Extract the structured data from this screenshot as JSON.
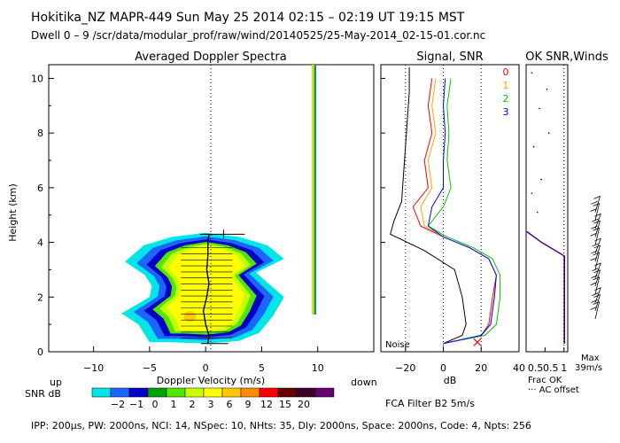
{
  "header": {
    "line1": "Hokitika_NZ  MAPR-449  Sun May 25 2014 02:15 – 02:19 UT 19:15 MST",
    "line2": "Dwell  0 –  9   /scr/data/modular_prof/raw/wind/20140525/25-May-2014_02-15-01.cor.nc"
  },
  "footer": {
    "params": "IPP: 200µs,  PW: 2000ns,  NCI: 14,  NSpec: 10, NHts: 35,  Dly: 2000ns,  Space: 2000ns,  Code: 4,  Npts: 256",
    "fca_filter": "FCA Filter B2   5m/s"
  },
  "colorbar": {
    "label": "SNR dB",
    "ticks": [
      "−2",
      "−1",
      "0",
      "1",
      "2",
      "3",
      "6",
      "9",
      "12",
      "15",
      "20"
    ],
    "colors": [
      "#00e5e5",
      "#1e64ff",
      "#0000c8",
      "#00a000",
      "#50e600",
      "#c8ff00",
      "#ffff00",
      "#ffc800",
      "#ff8c00",
      "#ff0000",
      "#640000",
      "#3c0028",
      "#64006e"
    ]
  },
  "chart_data": [
    {
      "type": "heatmap",
      "title": "Averaged Doppler Spectra",
      "xlabel": "Doppler Velocity (m/s)",
      "ylabel": "Height (km)",
      "xlabel_left": "up",
      "xlabel_right": "down",
      "xlim": [
        -14,
        15
      ],
      "ylim": [
        0,
        10.5
      ],
      "xticks": [
        -10,
        -5,
        0,
        5,
        10
      ],
      "yticks": [
        0,
        2,
        4,
        6,
        8,
        10
      ],
      "spectra_top_km": 4.3,
      "mean_velocity_profile": {
        "height_km": [
          0.3,
          0.6,
          1.0,
          1.5,
          2.0,
          2.5,
          3.0,
          3.5,
          4.0,
          4.3
        ],
        "velocity_ms": [
          0.2,
          0.3,
          0.0,
          -0.2,
          0.1,
          0.3,
          0.1,
          0.2,
          0.2,
          0.3
        ]
      }
    },
    {
      "type": "line",
      "title": "Signal, SNR",
      "xlabel": "dB",
      "xlim": [
        -33,
        40
      ],
      "ylim": [
        0,
        10.5
      ],
      "xticks": [
        -20,
        0,
        20,
        40
      ],
      "noise_label": "Noise",
      "legend": [
        "0",
        "1",
        "2",
        "3"
      ],
      "legend_colors": [
        "#ff0000",
        "#ffa500",
        "#00c800",
        "#0000ff"
      ],
      "series": [
        {
          "name": "Signal",
          "color": "#000000",
          "height_km": [
            0.3,
            0.6,
            1.0,
            2.0,
            3.0,
            3.7,
            4.3,
            4.8,
            5.5,
            6.5,
            7.5,
            8.5,
            9.5,
            10.4
          ],
          "x_db": [
            0,
            10,
            12,
            10,
            6,
            -10,
            -28,
            -26,
            -22,
            -21,
            -20,
            -19,
            -18,
            -18
          ]
        },
        {
          "name": "0",
          "color": "#ff0000",
          "height_km": [
            0.3,
            0.6,
            1.0,
            2.0,
            2.8,
            3.4,
            3.8,
            4.2,
            4.6,
            5.3,
            6.0,
            7.0,
            8.0,
            9.0,
            10.0
          ],
          "x_db": [
            0,
            20,
            24,
            26,
            28,
            24,
            14,
            0,
            -12,
            -16,
            -8,
            -10,
            -6,
            -8,
            -6
          ]
        },
        {
          "name": "1",
          "color": "#ffa500",
          "height_km": [
            0.3,
            0.6,
            1.0,
            2.0,
            2.8,
            3.4,
            3.8,
            4.2,
            4.6,
            5.3,
            6.0,
            7.0,
            8.0,
            9.0,
            10.0
          ],
          "x_db": [
            0,
            20,
            25,
            27,
            28,
            24,
            14,
            0,
            -10,
            -12,
            -6,
            -8,
            -4,
            -6,
            -4
          ]
        },
        {
          "name": "2",
          "color": "#00c800",
          "height_km": [
            0.3,
            0.6,
            1.0,
            2.0,
            2.8,
            3.4,
            3.8,
            4.2,
            4.6,
            5.3,
            6.0,
            7.0,
            8.0,
            9.0,
            10.0
          ],
          "x_db": [
            0,
            22,
            28,
            30,
            30,
            26,
            16,
            2,
            -8,
            0,
            4,
            2,
            3,
            2,
            4
          ]
        },
        {
          "name": "3",
          "color": "#0000ff",
          "height_km": [
            0.3,
            0.6,
            1.0,
            2.0,
            2.8,
            3.4,
            3.8,
            4.2,
            4.6,
            5.3,
            6.0,
            7.0,
            8.0,
            9.0,
            10.0
          ],
          "x_db": [
            0,
            20,
            25,
            27,
            28,
            24,
            14,
            0,
            -8,
            -6,
            0,
            0,
            1,
            0,
            1
          ]
        }
      ]
    },
    {
      "type": "line",
      "title": "OK SNR,Winds",
      "xlabel": "Frac OK",
      "xticks": [
        "0.5",
        "0.5",
        "1"
      ],
      "xlim": [
        0,
        1.1
      ],
      "note": "··· AC offset",
      "series": [
        {
          "name": "Frac OK",
          "color": "#0000cc",
          "height_km": [
            0.3,
            3.5,
            4.0,
            4.4
          ],
          "frac": [
            1.0,
            1.0,
            0.4,
            0.0
          ]
        }
      ]
    },
    {
      "type": "scatter",
      "title": "Winds",
      "max_label": "Max",
      "max_speed_label": "39m/s",
      "barb_heights_km": [
        1.2,
        1.5,
        1.8,
        2.1,
        2.4,
        2.7,
        3.0,
        3.3,
        3.6,
        3.9,
        4.2,
        4.5,
        4.8,
        5.1
      ]
    }
  ]
}
